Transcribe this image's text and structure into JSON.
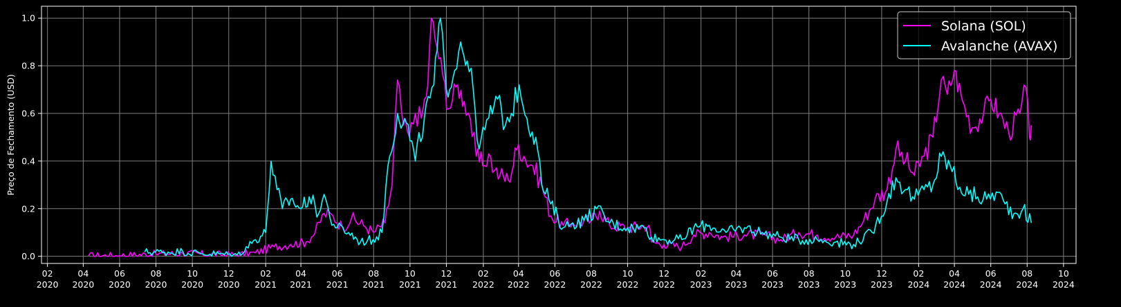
{
  "chart_data": {
    "type": "line",
    "title": "",
    "xlabel": "",
    "ylabel": "Preço de Fechamento (USD)",
    "ylim": [
      -0.03,
      1.05
    ],
    "xlim": [
      "2020-01-22",
      "2024-10-22"
    ],
    "y_ticks": [
      "0.0",
      "0.2",
      "0.4",
      "0.6",
      "0.8",
      "1.0"
    ],
    "x_ticks": [
      {
        "month": "02",
        "year": "2020"
      },
      {
        "month": "04",
        "year": "2020"
      },
      {
        "month": "06",
        "year": "2020"
      },
      {
        "month": "08",
        "year": "2020"
      },
      {
        "month": "10",
        "year": "2020"
      },
      {
        "month": "12",
        "year": "2020"
      },
      {
        "month": "02",
        "year": "2021"
      },
      {
        "month": "04",
        "year": "2021"
      },
      {
        "month": "06",
        "year": "2021"
      },
      {
        "month": "08",
        "year": "2021"
      },
      {
        "month": "10",
        "year": "2021"
      },
      {
        "month": "12",
        "year": "2021"
      },
      {
        "month": "02",
        "year": "2022"
      },
      {
        "month": "04",
        "year": "2022"
      },
      {
        "month": "06",
        "year": "2022"
      },
      {
        "month": "08",
        "year": "2022"
      },
      {
        "month": "10",
        "year": "2022"
      },
      {
        "month": "12",
        "year": "2022"
      },
      {
        "month": "02",
        "year": "2023"
      },
      {
        "month": "04",
        "year": "2023"
      },
      {
        "month": "06",
        "year": "2023"
      },
      {
        "month": "08",
        "year": "2023"
      },
      {
        "month": "10",
        "year": "2023"
      },
      {
        "month": "12",
        "year": "2023"
      },
      {
        "month": "02",
        "year": "2024"
      },
      {
        "month": "04",
        "year": "2024"
      },
      {
        "month": "06",
        "year": "2024"
      },
      {
        "month": "08",
        "year": "2024"
      },
      {
        "month": "10",
        "year": "2024"
      }
    ],
    "grid": true,
    "legend_position": "top-right",
    "background_color": "#000000",
    "grid_color": "#808080",
    "series": [
      {
        "name": "Solana (SOL)",
        "color": "#ff00ff",
        "points": [
          [
            "2020-04-10",
            0.002
          ],
          [
            "2020-06-01",
            0.003
          ],
          [
            "2020-08-01",
            0.01
          ],
          [
            "2020-09-15",
            0.012
          ],
          [
            "2020-11-01",
            0.008
          ],
          [
            "2020-12-15",
            0.006
          ],
          [
            "2021-01-15",
            0.015
          ],
          [
            "2021-02-15",
            0.04
          ],
          [
            "2021-03-15",
            0.05
          ],
          [
            "2021-04-10",
            0.06
          ],
          [
            "2021-04-25",
            0.1
          ],
          [
            "2021-05-10",
            0.18
          ],
          [
            "2021-05-25",
            0.17
          ],
          [
            "2021-06-10",
            0.12
          ],
          [
            "2021-06-25",
            0.16
          ],
          [
            "2021-07-15",
            0.13
          ],
          [
            "2021-08-01",
            0.1
          ],
          [
            "2021-08-20",
            0.14
          ],
          [
            "2021-09-01",
            0.3
          ],
          [
            "2021-09-10",
            0.74
          ],
          [
            "2021-09-20",
            0.55
          ],
          [
            "2021-09-30",
            0.5
          ],
          [
            "2021-10-10",
            0.6
          ],
          [
            "2021-10-20",
            0.58
          ],
          [
            "2021-10-31",
            0.72
          ],
          [
            "2021-11-06",
            1.0
          ],
          [
            "2021-11-15",
            0.88
          ],
          [
            "2021-11-25",
            0.76
          ],
          [
            "2021-12-05",
            0.62
          ],
          [
            "2021-12-20",
            0.72
          ],
          [
            "2021-12-31",
            0.65
          ],
          [
            "2022-01-10",
            0.58
          ],
          [
            "2022-01-20",
            0.42
          ],
          [
            "2022-01-31",
            0.38
          ],
          [
            "2022-02-10",
            0.43
          ],
          [
            "2022-02-20",
            0.36
          ],
          [
            "2022-03-01",
            0.34
          ],
          [
            "2022-03-15",
            0.32
          ],
          [
            "2022-04-01",
            0.47
          ],
          [
            "2022-04-10",
            0.42
          ],
          [
            "2022-04-25",
            0.38
          ],
          [
            "2022-05-10",
            0.3
          ],
          [
            "2022-05-25",
            0.17
          ],
          [
            "2022-06-15",
            0.13
          ],
          [
            "2022-07-01",
            0.14
          ],
          [
            "2022-08-01",
            0.15
          ],
          [
            "2022-08-15",
            0.19
          ],
          [
            "2022-09-01",
            0.13
          ],
          [
            "2022-10-01",
            0.12
          ],
          [
            "2022-11-06",
            0.13
          ],
          [
            "2022-11-10",
            0.06
          ],
          [
            "2022-12-01",
            0.05
          ],
          [
            "2022-12-31",
            0.04
          ],
          [
            "2023-01-20",
            0.09
          ],
          [
            "2023-02-15",
            0.1
          ],
          [
            "2023-03-10",
            0.08
          ],
          [
            "2023-04-15",
            0.09
          ],
          [
            "2023-05-15",
            0.09
          ],
          [
            "2023-06-15",
            0.07
          ],
          [
            "2023-07-15",
            0.1
          ],
          [
            "2023-08-15",
            0.09
          ],
          [
            "2023-09-15",
            0.08
          ],
          [
            "2023-10-15",
            0.09
          ],
          [
            "2023-11-01",
            0.15
          ],
          [
            "2023-11-20",
            0.24
          ],
          [
            "2023-12-10",
            0.28
          ],
          [
            "2023-12-25",
            0.45
          ],
          [
            "2024-01-10",
            0.4
          ],
          [
            "2024-01-25",
            0.34
          ],
          [
            "2024-02-10",
            0.42
          ],
          [
            "2024-02-25",
            0.5
          ],
          [
            "2024-03-10",
            0.74
          ],
          [
            "2024-03-20",
            0.68
          ],
          [
            "2024-04-01",
            0.78
          ],
          [
            "2024-04-15",
            0.65
          ],
          [
            "2024-05-01",
            0.54
          ],
          [
            "2024-05-20",
            0.6
          ],
          [
            "2024-06-01",
            0.66
          ],
          [
            "2024-06-15",
            0.6
          ],
          [
            "2024-07-01",
            0.52
          ],
          [
            "2024-07-20",
            0.6
          ],
          [
            "2024-07-30",
            0.71
          ],
          [
            "2024-08-05",
            0.5
          ],
          [
            "2024-08-08",
            0.55
          ]
        ]
      },
      {
        "name": "Avalanche (AVAX)",
        "color": "#00ffff",
        "points": [
          [
            "2020-07-13",
            0.018
          ],
          [
            "2020-08-15",
            0.018
          ],
          [
            "2020-09-15",
            0.02
          ],
          [
            "2020-10-15",
            0.012
          ],
          [
            "2020-11-15",
            0.01
          ],
          [
            "2020-12-15",
            0.005
          ],
          [
            "2021-01-15",
            0.07
          ],
          [
            "2021-02-01",
            0.1
          ],
          [
            "2021-02-10",
            0.4
          ],
          [
            "2021-02-20",
            0.28
          ],
          [
            "2021-03-01",
            0.2
          ],
          [
            "2021-03-15",
            0.24
          ],
          [
            "2021-04-01",
            0.2
          ],
          [
            "2021-04-15",
            0.25
          ],
          [
            "2021-05-01",
            0.18
          ],
          [
            "2021-05-10",
            0.26
          ],
          [
            "2021-05-20",
            0.16
          ],
          [
            "2021-06-01",
            0.12
          ],
          [
            "2021-06-20",
            0.1
          ],
          [
            "2021-07-10",
            0.06
          ],
          [
            "2021-07-31",
            0.07
          ],
          [
            "2021-08-15",
            0.1
          ],
          [
            "2021-08-25",
            0.38
          ],
          [
            "2021-09-10",
            0.6
          ],
          [
            "2021-09-25",
            0.56
          ],
          [
            "2021-10-10",
            0.4
          ],
          [
            "2021-10-25",
            0.58
          ],
          [
            "2021-11-10",
            0.72
          ],
          [
            "2021-11-21",
            1.0
          ],
          [
            "2021-12-01",
            0.7
          ],
          [
            "2021-12-15",
            0.78
          ],
          [
            "2021-12-25",
            0.9
          ],
          [
            "2022-01-05",
            0.82
          ],
          [
            "2022-01-15",
            0.7
          ],
          [
            "2022-01-25",
            0.45
          ],
          [
            "2022-02-10",
            0.58
          ],
          [
            "2022-02-25",
            0.66
          ],
          [
            "2022-03-10",
            0.55
          ],
          [
            "2022-03-20",
            0.6
          ],
          [
            "2022-04-02",
            0.72
          ],
          [
            "2022-04-15",
            0.58
          ],
          [
            "2022-04-30",
            0.5
          ],
          [
            "2022-05-10",
            0.3
          ],
          [
            "2022-05-25",
            0.22
          ],
          [
            "2022-06-15",
            0.12
          ],
          [
            "2022-07-01",
            0.14
          ],
          [
            "2022-07-20",
            0.15
          ],
          [
            "2022-08-10",
            0.2
          ],
          [
            "2022-09-01",
            0.14
          ],
          [
            "2022-10-01",
            0.12
          ],
          [
            "2022-11-01",
            0.12
          ],
          [
            "2022-11-10",
            0.08
          ],
          [
            "2022-12-01",
            0.07
          ],
          [
            "2022-12-31",
            0.07
          ],
          [
            "2023-01-20",
            0.12
          ],
          [
            "2023-02-15",
            0.13
          ],
          [
            "2023-03-15",
            0.1
          ],
          [
            "2023-04-15",
            0.12
          ],
          [
            "2023-05-15",
            0.1
          ],
          [
            "2023-06-15",
            0.08
          ],
          [
            "2023-07-15",
            0.07
          ],
          [
            "2023-08-15",
            0.07
          ],
          [
            "2023-09-15",
            0.06
          ],
          [
            "2023-10-15",
            0.05
          ],
          [
            "2023-11-15",
            0.1
          ],
          [
            "2023-12-10",
            0.23
          ],
          [
            "2023-12-25",
            0.33
          ],
          [
            "2024-01-10",
            0.28
          ],
          [
            "2024-01-25",
            0.24
          ],
          [
            "2024-02-10",
            0.28
          ],
          [
            "2024-02-25",
            0.3
          ],
          [
            "2024-03-10",
            0.42
          ],
          [
            "2024-03-25",
            0.38
          ],
          [
            "2024-04-10",
            0.29
          ],
          [
            "2024-04-25",
            0.26
          ],
          [
            "2024-05-10",
            0.25
          ],
          [
            "2024-05-25",
            0.24
          ],
          [
            "2024-06-10",
            0.27
          ],
          [
            "2024-06-25",
            0.22
          ],
          [
            "2024-07-10",
            0.18
          ],
          [
            "2024-07-25",
            0.2
          ],
          [
            "2024-08-08",
            0.14
          ]
        ]
      }
    ]
  }
}
